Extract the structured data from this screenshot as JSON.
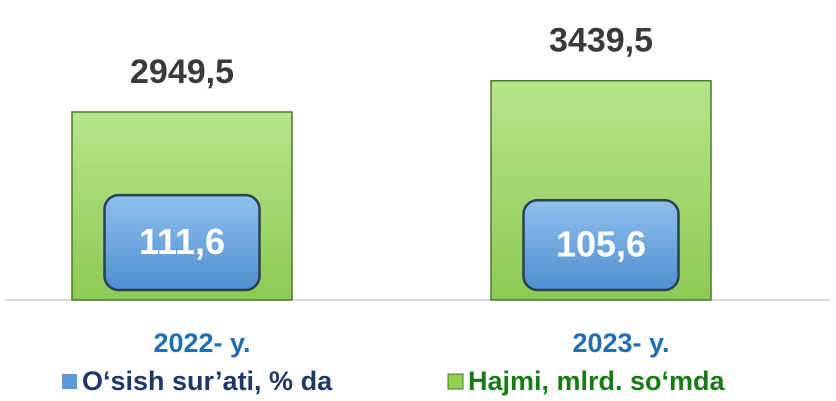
{
  "chart_data": {
    "type": "bar",
    "categories": [
      "2022- y.",
      "2023- y."
    ],
    "series": [
      {
        "name": "Hajmi, mlrd. so‘mda",
        "color": "#92d050",
        "values": [
          2949.5,
          3439.5
        ],
        "value_labels": [
          "2949,5",
          "3439,5"
        ]
      },
      {
        "name": "O‘sish sur’ati, % da",
        "color": "#5b9bd5",
        "axis": "y2",
        "values": [
          111.6,
          105.6
        ],
        "value_labels": [
          "111,6",
          "105,6"
        ]
      }
    ],
    "ylim": [
      0,
      4000
    ],
    "y2lim": [
      0,
      300
    ]
  }
}
